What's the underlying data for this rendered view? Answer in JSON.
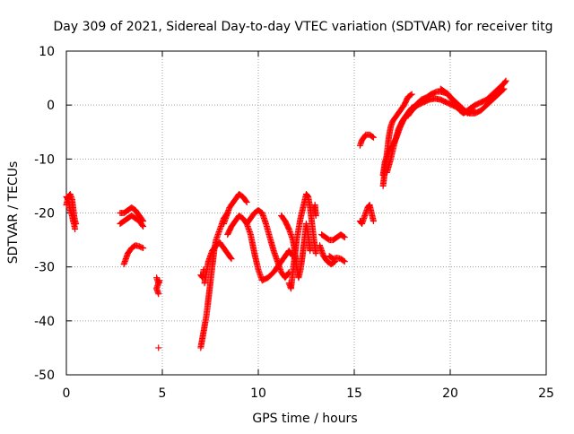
{
  "chart_data": {
    "type": "scatter",
    "title": "Day 309 of 2021, Sidereal Day-to-day VTEC variation (SDTVAR) for receiver titg",
    "xlabel": "GPS time / hours",
    "ylabel": "SDTVAR / TECUs",
    "xlim": [
      0,
      25
    ],
    "ylim": [
      -50,
      10
    ],
    "xticks": [
      0,
      5,
      10,
      15,
      20,
      25
    ],
    "xtick_labels": [
      "0",
      "5",
      "10",
      "15",
      "20",
      "25"
    ],
    "yticks": [
      -50,
      -40,
      -30,
      -20,
      -10,
      0,
      10
    ],
    "ytick_labels": [
      "-50",
      "-40",
      "-30",
      "-20",
      "-10",
      "0",
      "10"
    ],
    "grid": true,
    "marker": "+",
    "color": "#ff0000",
    "series": [
      {
        "name": "seg1",
        "points": [
          [
            0.0,
            -17
          ],
          [
            0.1,
            -17.5
          ],
          [
            0.15,
            -18.5
          ],
          [
            0.2,
            -19.5
          ],
          [
            0.25,
            -20
          ],
          [
            0.3,
            -20.5
          ],
          [
            0.35,
            -21.5
          ],
          [
            0.4,
            -22
          ],
          [
            0.45,
            -23
          ]
        ]
      },
      {
        "name": "seg2",
        "points": [
          [
            0.0,
            -18.5
          ],
          [
            0.1,
            -17
          ],
          [
            0.2,
            -16.5
          ],
          [
            0.3,
            -17.5
          ],
          [
            0.35,
            -19
          ],
          [
            0.4,
            -20.5
          ],
          [
            0.45,
            -21.5
          ],
          [
            0.5,
            -22
          ]
        ]
      },
      {
        "name": "seg3",
        "points": [
          [
            2.8,
            -20
          ],
          [
            3.0,
            -20
          ],
          [
            3.2,
            -19.5
          ],
          [
            3.4,
            -19
          ],
          [
            3.6,
            -19.5
          ],
          [
            3.8,
            -20.5
          ],
          [
            4.0,
            -21.5
          ]
        ]
      },
      {
        "name": "seg4",
        "points": [
          [
            2.8,
            -22
          ],
          [
            3.0,
            -21.5
          ],
          [
            3.2,
            -21
          ],
          [
            3.4,
            -20.5
          ],
          [
            3.6,
            -21
          ],
          [
            3.8,
            -21.5
          ],
          [
            4.0,
            -22.5
          ]
        ]
      },
      {
        "name": "seg5",
        "points": [
          [
            3.0,
            -29.5
          ],
          [
            3.1,
            -28.5
          ],
          [
            3.2,
            -27.5
          ],
          [
            3.4,
            -26.5
          ],
          [
            3.6,
            -26
          ],
          [
            3.8,
            -26.2
          ],
          [
            4.0,
            -26.5
          ]
        ]
      },
      {
        "name": "seg6",
        "points": [
          [
            4.7,
            -32
          ],
          [
            4.75,
            -32.5
          ],
          [
            4.8,
            -33
          ],
          [
            4.85,
            -32.5
          ],
          [
            4.7,
            -34
          ],
          [
            4.75,
            -34.5
          ],
          [
            4.8,
            -35
          ]
        ]
      },
      {
        "name": "seg7",
        "points": [
          [
            4.8,
            -45
          ]
        ]
      },
      {
        "name": "seg8",
        "points": [
          [
            7.0,
            -45
          ],
          [
            7.1,
            -43
          ],
          [
            7.2,
            -41
          ],
          [
            7.3,
            -39
          ],
          [
            7.4,
            -36
          ],
          [
            7.5,
            -33
          ],
          [
            7.6,
            -30
          ],
          [
            7.7,
            -27
          ],
          [
            7.8,
            -25
          ],
          [
            8.0,
            -23
          ],
          [
            8.2,
            -21
          ],
          [
            8.4,
            -20
          ]
        ]
      },
      {
        "name": "seg9",
        "points": [
          [
            7.2,
            -33
          ],
          [
            7.3,
            -31
          ],
          [
            7.4,
            -29
          ],
          [
            7.6,
            -27
          ],
          [
            7.8,
            -26
          ],
          [
            8.0,
            -25.5
          ],
          [
            8.2,
            -26.5
          ],
          [
            8.4,
            -27.5
          ],
          [
            8.6,
            -28.5
          ]
        ]
      },
      {
        "name": "seg10",
        "points": [
          [
            7.0,
            -31.5
          ],
          [
            7.1,
            -32
          ],
          [
            7.15,
            -30.5
          ]
        ]
      },
      {
        "name": "seg11",
        "points": [
          [
            8.2,
            -22
          ],
          [
            8.5,
            -19
          ],
          [
            8.8,
            -17.5
          ],
          [
            9.0,
            -16.5
          ],
          [
            9.2,
            -17
          ],
          [
            9.4,
            -18
          ]
        ]
      },
      {
        "name": "seg12",
        "points": [
          [
            8.4,
            -24
          ],
          [
            8.6,
            -22.5
          ],
          [
            8.8,
            -21.5
          ],
          [
            9.0,
            -20.5
          ],
          [
            9.2,
            -21
          ],
          [
            9.4,
            -22
          ],
          [
            9.6,
            -24
          ],
          [
            9.8,
            -27.5
          ],
          [
            10.0,
            -30.5
          ],
          [
            10.2,
            -32.5
          ],
          [
            10.5,
            -32
          ],
          [
            10.8,
            -31
          ],
          [
            11.0,
            -30
          ],
          [
            11.3,
            -28.5
          ],
          [
            11.6,
            -27
          ],
          [
            11.8,
            -28
          ]
        ]
      },
      {
        "name": "seg13",
        "points": [
          [
            9.4,
            -22
          ],
          [
            9.6,
            -21
          ],
          [
            9.8,
            -20
          ],
          [
            10.0,
            -19.5
          ],
          [
            10.2,
            -20
          ],
          [
            10.4,
            -22
          ],
          [
            10.6,
            -24.5
          ],
          [
            10.8,
            -27
          ],
          [
            11.0,
            -29
          ],
          [
            11.2,
            -31
          ],
          [
            11.4,
            -32
          ],
          [
            11.6,
            -31
          ]
        ]
      },
      {
        "name": "seg14",
        "points": [
          [
            11.2,
            -20.5
          ],
          [
            11.4,
            -21.5
          ],
          [
            11.6,
            -23
          ],
          [
            11.8,
            -25
          ],
          [
            11.9,
            -27
          ],
          [
            12.0,
            -30
          ],
          [
            12.1,
            -32
          ],
          [
            12.2,
            -30.5
          ],
          [
            12.3,
            -28
          ],
          [
            12.4,
            -25
          ],
          [
            12.5,
            -22
          ],
          [
            12.6,
            -24
          ],
          [
            12.7,
            -27
          ]
        ]
      },
      {
        "name": "seg15",
        "points": [
          [
            11.6,
            -33
          ],
          [
            11.7,
            -34
          ],
          [
            11.8,
            -31
          ],
          [
            11.9,
            -28
          ],
          [
            12.0,
            -25
          ],
          [
            12.2,
            -21
          ],
          [
            12.4,
            -18
          ],
          [
            12.5,
            -16.5
          ],
          [
            12.6,
            -17
          ],
          [
            12.7,
            -19
          ],
          [
            12.8,
            -22
          ],
          [
            12.9,
            -25
          ],
          [
            13.0,
            -27.5
          ]
        ]
      },
      {
        "name": "seg16",
        "points": [
          [
            12.9,
            -19
          ],
          [
            13.0,
            -20.5
          ],
          [
            12.95,
            -18.5
          ]
        ]
      },
      {
        "name": "seg17",
        "points": [
          [
            13.2,
            -26
          ],
          [
            13.4,
            -28
          ],
          [
            13.6,
            -29
          ],
          [
            13.8,
            -29.5
          ],
          [
            14.0,
            -29
          ]
        ]
      },
      {
        "name": "seg18",
        "points": [
          [
            13.3,
            -24
          ],
          [
            13.5,
            -24.5
          ],
          [
            13.7,
            -25
          ],
          [
            13.9,
            -25
          ],
          [
            14.1,
            -24.5
          ],
          [
            14.3,
            -24
          ],
          [
            14.5,
            -24.5
          ]
        ]
      },
      {
        "name": "seg19",
        "points": [
          [
            13.7,
            -28
          ],
          [
            13.9,
            -28.5
          ],
          [
            14.1,
            -28.3
          ],
          [
            14.3,
            -28.5
          ],
          [
            14.5,
            -29
          ]
        ]
      },
      {
        "name": "seg20",
        "points": [
          [
            15.3,
            -7.5
          ],
          [
            15.4,
            -6.5
          ],
          [
            15.6,
            -5.5
          ],
          [
            15.8,
            -5.5
          ],
          [
            16.0,
            -6
          ]
        ]
      },
      {
        "name": "seg21",
        "points": [
          [
            15.3,
            -21.5
          ],
          [
            15.4,
            -22
          ],
          [
            15.5,
            -21
          ],
          [
            15.6,
            -20
          ],
          [
            15.7,
            -19
          ],
          [
            15.8,
            -18.5
          ],
          [
            15.9,
            -20
          ],
          [
            16.0,
            -21.5
          ]
        ]
      },
      {
        "name": "seg22",
        "points": [
          [
            16.5,
            -15
          ],
          [
            16.6,
            -12
          ],
          [
            16.7,
            -9
          ],
          [
            16.8,
            -6
          ],
          [
            16.9,
            -4
          ],
          [
            17.0,
            -3
          ],
          [
            17.2,
            -2
          ],
          [
            17.4,
            -1
          ],
          [
            17.6,
            0
          ],
          [
            17.8,
            1.5
          ],
          [
            18.0,
            2
          ]
        ]
      },
      {
        "name": "seg23",
        "points": [
          [
            16.5,
            -13
          ],
          [
            16.6,
            -10.5
          ],
          [
            16.8,
            -8.5
          ],
          [
            17.0,
            -7.5
          ],
          [
            17.2,
            -6
          ],
          [
            17.4,
            -4
          ],
          [
            17.6,
            -2.5
          ],
          [
            17.8,
            -1.5
          ],
          [
            18.0,
            -0.5
          ],
          [
            18.3,
            0
          ]
        ]
      },
      {
        "name": "seg24",
        "points": [
          [
            16.7,
            -12.5
          ],
          [
            16.9,
            -10
          ],
          [
            17.1,
            -7
          ],
          [
            17.3,
            -4.5
          ],
          [
            17.5,
            -3
          ],
          [
            17.7,
            -2
          ],
          [
            17.9,
            -1
          ],
          [
            18.2,
            0
          ],
          [
            18.5,
            1
          ],
          [
            18.8,
            1.5
          ],
          [
            19.0,
            2
          ],
          [
            19.3,
            2.5
          ],
          [
            19.5,
            2.5
          ],
          [
            19.8,
            2.2
          ],
          [
            20.0,
            1.5
          ],
          [
            20.3,
            0.5
          ],
          [
            20.6,
            -0.5
          ],
          [
            20.9,
            -1.5
          ],
          [
            21.1,
            -1
          ],
          [
            21.3,
            -1.2
          ]
        ]
      },
      {
        "name": "seg25",
        "points": [
          [
            17.8,
            -2
          ],
          [
            18.0,
            -1
          ],
          [
            18.3,
            0
          ],
          [
            18.6,
            0.5
          ],
          [
            18.9,
            1
          ],
          [
            19.2,
            1.2
          ],
          [
            19.5,
            1
          ],
          [
            19.8,
            0.5
          ],
          [
            20.1,
            0
          ],
          [
            20.4,
            -0.5
          ],
          [
            20.7,
            -1
          ],
          [
            21.0,
            -1.5
          ],
          [
            21.3,
            -1.5
          ],
          [
            21.6,
            -1
          ],
          [
            21.9,
            0
          ],
          [
            22.2,
            1
          ],
          [
            22.5,
            2
          ],
          [
            22.8,
            3
          ]
        ]
      },
      {
        "name": "seg26",
        "points": [
          [
            19.5,
            3
          ],
          [
            19.7,
            2.5
          ],
          [
            19.9,
            2
          ],
          [
            20.1,
            1
          ],
          [
            20.3,
            0
          ],
          [
            20.5,
            -1
          ],
          [
            20.7,
            -1.5
          ],
          [
            20.9,
            -1
          ],
          [
            21.1,
            -0.5
          ],
          [
            21.3,
            0
          ],
          [
            21.6,
            0.5
          ],
          [
            21.9,
            1
          ],
          [
            22.2,
            2
          ],
          [
            22.5,
            3
          ],
          [
            22.8,
            4
          ],
          [
            22.9,
            4.5
          ]
        ]
      }
    ]
  }
}
